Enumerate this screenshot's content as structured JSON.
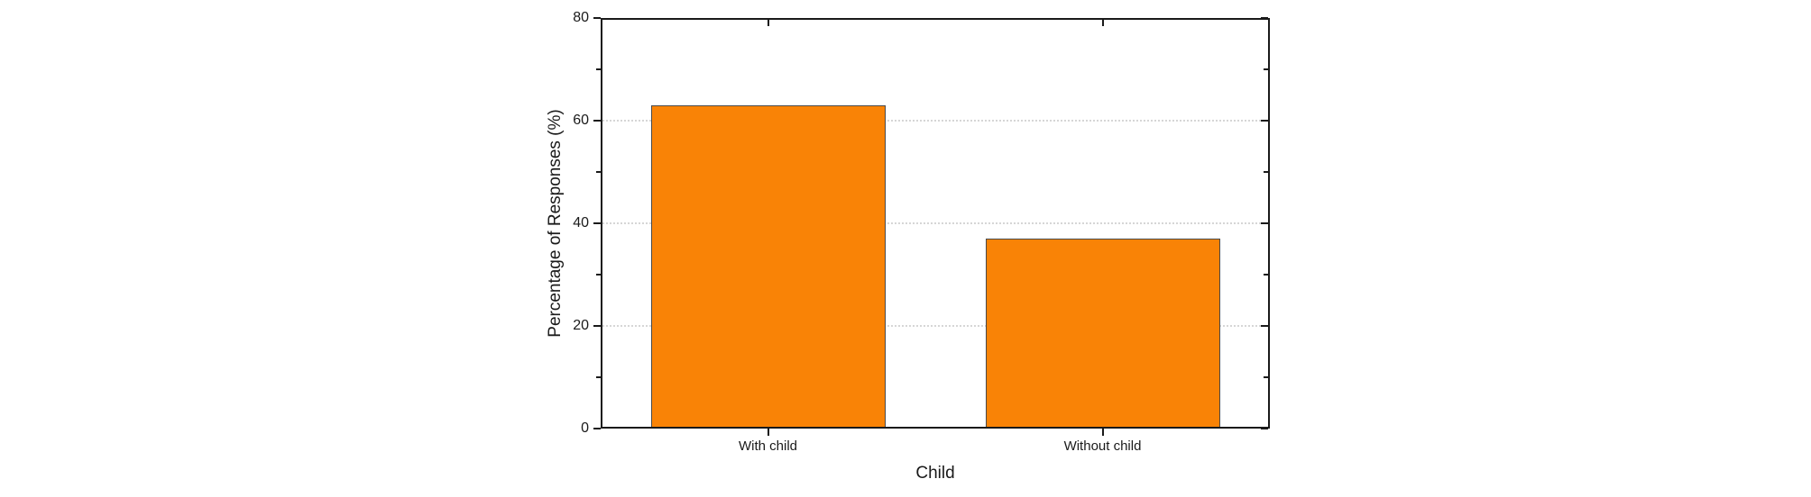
{
  "chart_data": {
    "type": "bar",
    "title": "",
    "categories": [
      "With child",
      "Without child"
    ],
    "values": [
      63,
      37
    ],
    "xlabel": "Child",
    "ylabel": "Percentage of Responses (%)",
    "ylim": [
      0,
      80
    ],
    "yticks": [
      0,
      20,
      40,
      60,
      80
    ],
    "yticks_minor": [
      10,
      30,
      50,
      70
    ],
    "grid": {
      "horizontal": true,
      "style": "dotted",
      "at": [
        20,
        40,
        60
      ]
    },
    "legend": "none",
    "bar_width_fraction": 0.7,
    "colors": {
      "bar_fill": "#F98306",
      "bar_border": "#4A4A4A",
      "axis": "#1A1A1A",
      "grid": "#D6D6D6",
      "text": "#1A1A1A",
      "background": "#FFFFFF"
    }
  }
}
